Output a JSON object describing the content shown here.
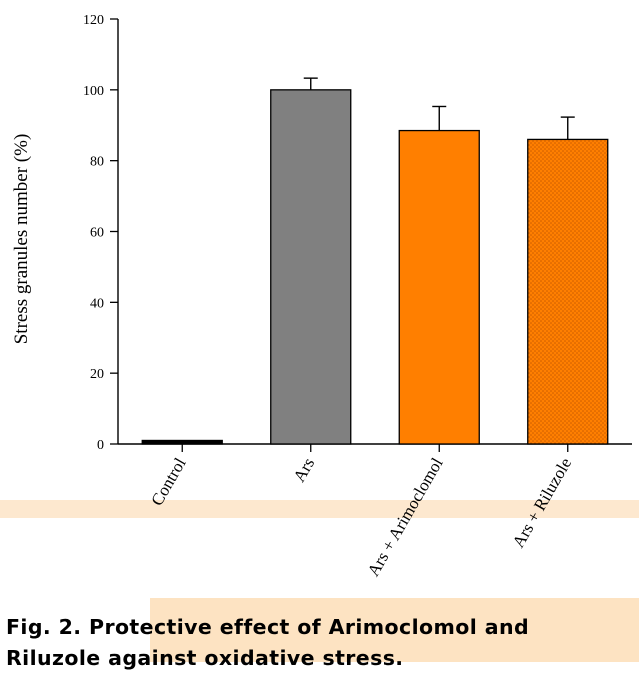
{
  "chart_data": {
    "type": "bar",
    "categories": [
      "Control",
      "Ars",
      "Ars + Arimoclomol",
      "Ars + Riluzole"
    ],
    "values": [
      1,
      100,
      88.5,
      86
    ],
    "error_upper": [
      0.3,
      3.3,
      6.8,
      6.3
    ],
    "colors": [
      "#000000",
      "#808080",
      "#ff7f00",
      "#ff7f00"
    ],
    "patterns": [
      "solid",
      "solid",
      "solid",
      "dotted"
    ],
    "title": "",
    "xlabel": "",
    "ylabel": "Stress granules number (%)",
    "ylim": [
      0,
      120
    ],
    "yticks": [
      0,
      20,
      40,
      60,
      80,
      100,
      120
    ],
    "grid": false,
    "legend": "none"
  },
  "caption": {
    "line1": "Fig. 2. Protective effect of Arimoclomol and",
    "line2": "Riluzole against oxidative stress."
  },
  "watermark_color": "#fde3c2"
}
